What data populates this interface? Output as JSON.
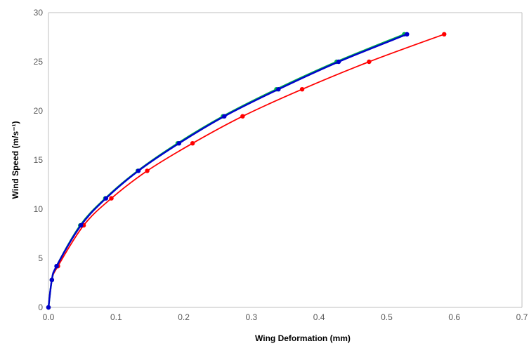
{
  "chart_data": {
    "type": "line",
    "title": "",
    "xlabel": "Wing Deformation    (mm)",
    "ylabel": "Wind Speed  (m/s⁻¹)",
    "xlim": [
      0,
      0.7
    ],
    "ylim": [
      0,
      30
    ],
    "x_ticks": [
      "0.0",
      "0.1",
      "0.2",
      "0.3",
      "0.4",
      "0.5",
      "0.6",
      "0.7"
    ],
    "y_ticks": [
      "0",
      "5",
      "10",
      "15",
      "20",
      "25",
      "30"
    ],
    "grid": false,
    "legend": "none",
    "series": [
      {
        "color": "#ff0000",
        "points": [
          [
            0.0,
            0.0
          ],
          [
            0.005,
            2.8
          ],
          [
            0.014,
            4.2
          ],
          [
            0.052,
            8.35
          ],
          [
            0.093,
            11.1
          ],
          [
            0.146,
            13.9
          ],
          [
            0.213,
            16.7
          ],
          [
            0.287,
            19.45
          ],
          [
            0.375,
            22.2
          ],
          [
            0.474,
            25.0
          ],
          [
            0.585,
            27.8
          ]
        ]
      },
      {
        "color": "#00b050",
        "points": [
          [
            0.0,
            0.0
          ],
          [
            0.005,
            2.8
          ],
          [
            0.012,
            4.2
          ],
          [
            0.047,
            8.35
          ],
          [
            0.084,
            11.1
          ],
          [
            0.132,
            13.9
          ],
          [
            0.191,
            16.7
          ],
          [
            0.258,
            19.45
          ],
          [
            0.337,
            22.2
          ],
          [
            0.426,
            25.0
          ],
          [
            0.526,
            27.8
          ]
        ]
      },
      {
        "color": "#0000cc",
        "points": [
          [
            0.0,
            0.0
          ],
          [
            0.005,
            2.8
          ],
          [
            0.012,
            4.2
          ],
          [
            0.048,
            8.35
          ],
          [
            0.085,
            11.1
          ],
          [
            0.133,
            13.9
          ],
          [
            0.193,
            16.7
          ],
          [
            0.26,
            19.45
          ],
          [
            0.34,
            22.2
          ],
          [
            0.429,
            25.0
          ],
          [
            0.53,
            27.8
          ]
        ]
      }
    ]
  }
}
